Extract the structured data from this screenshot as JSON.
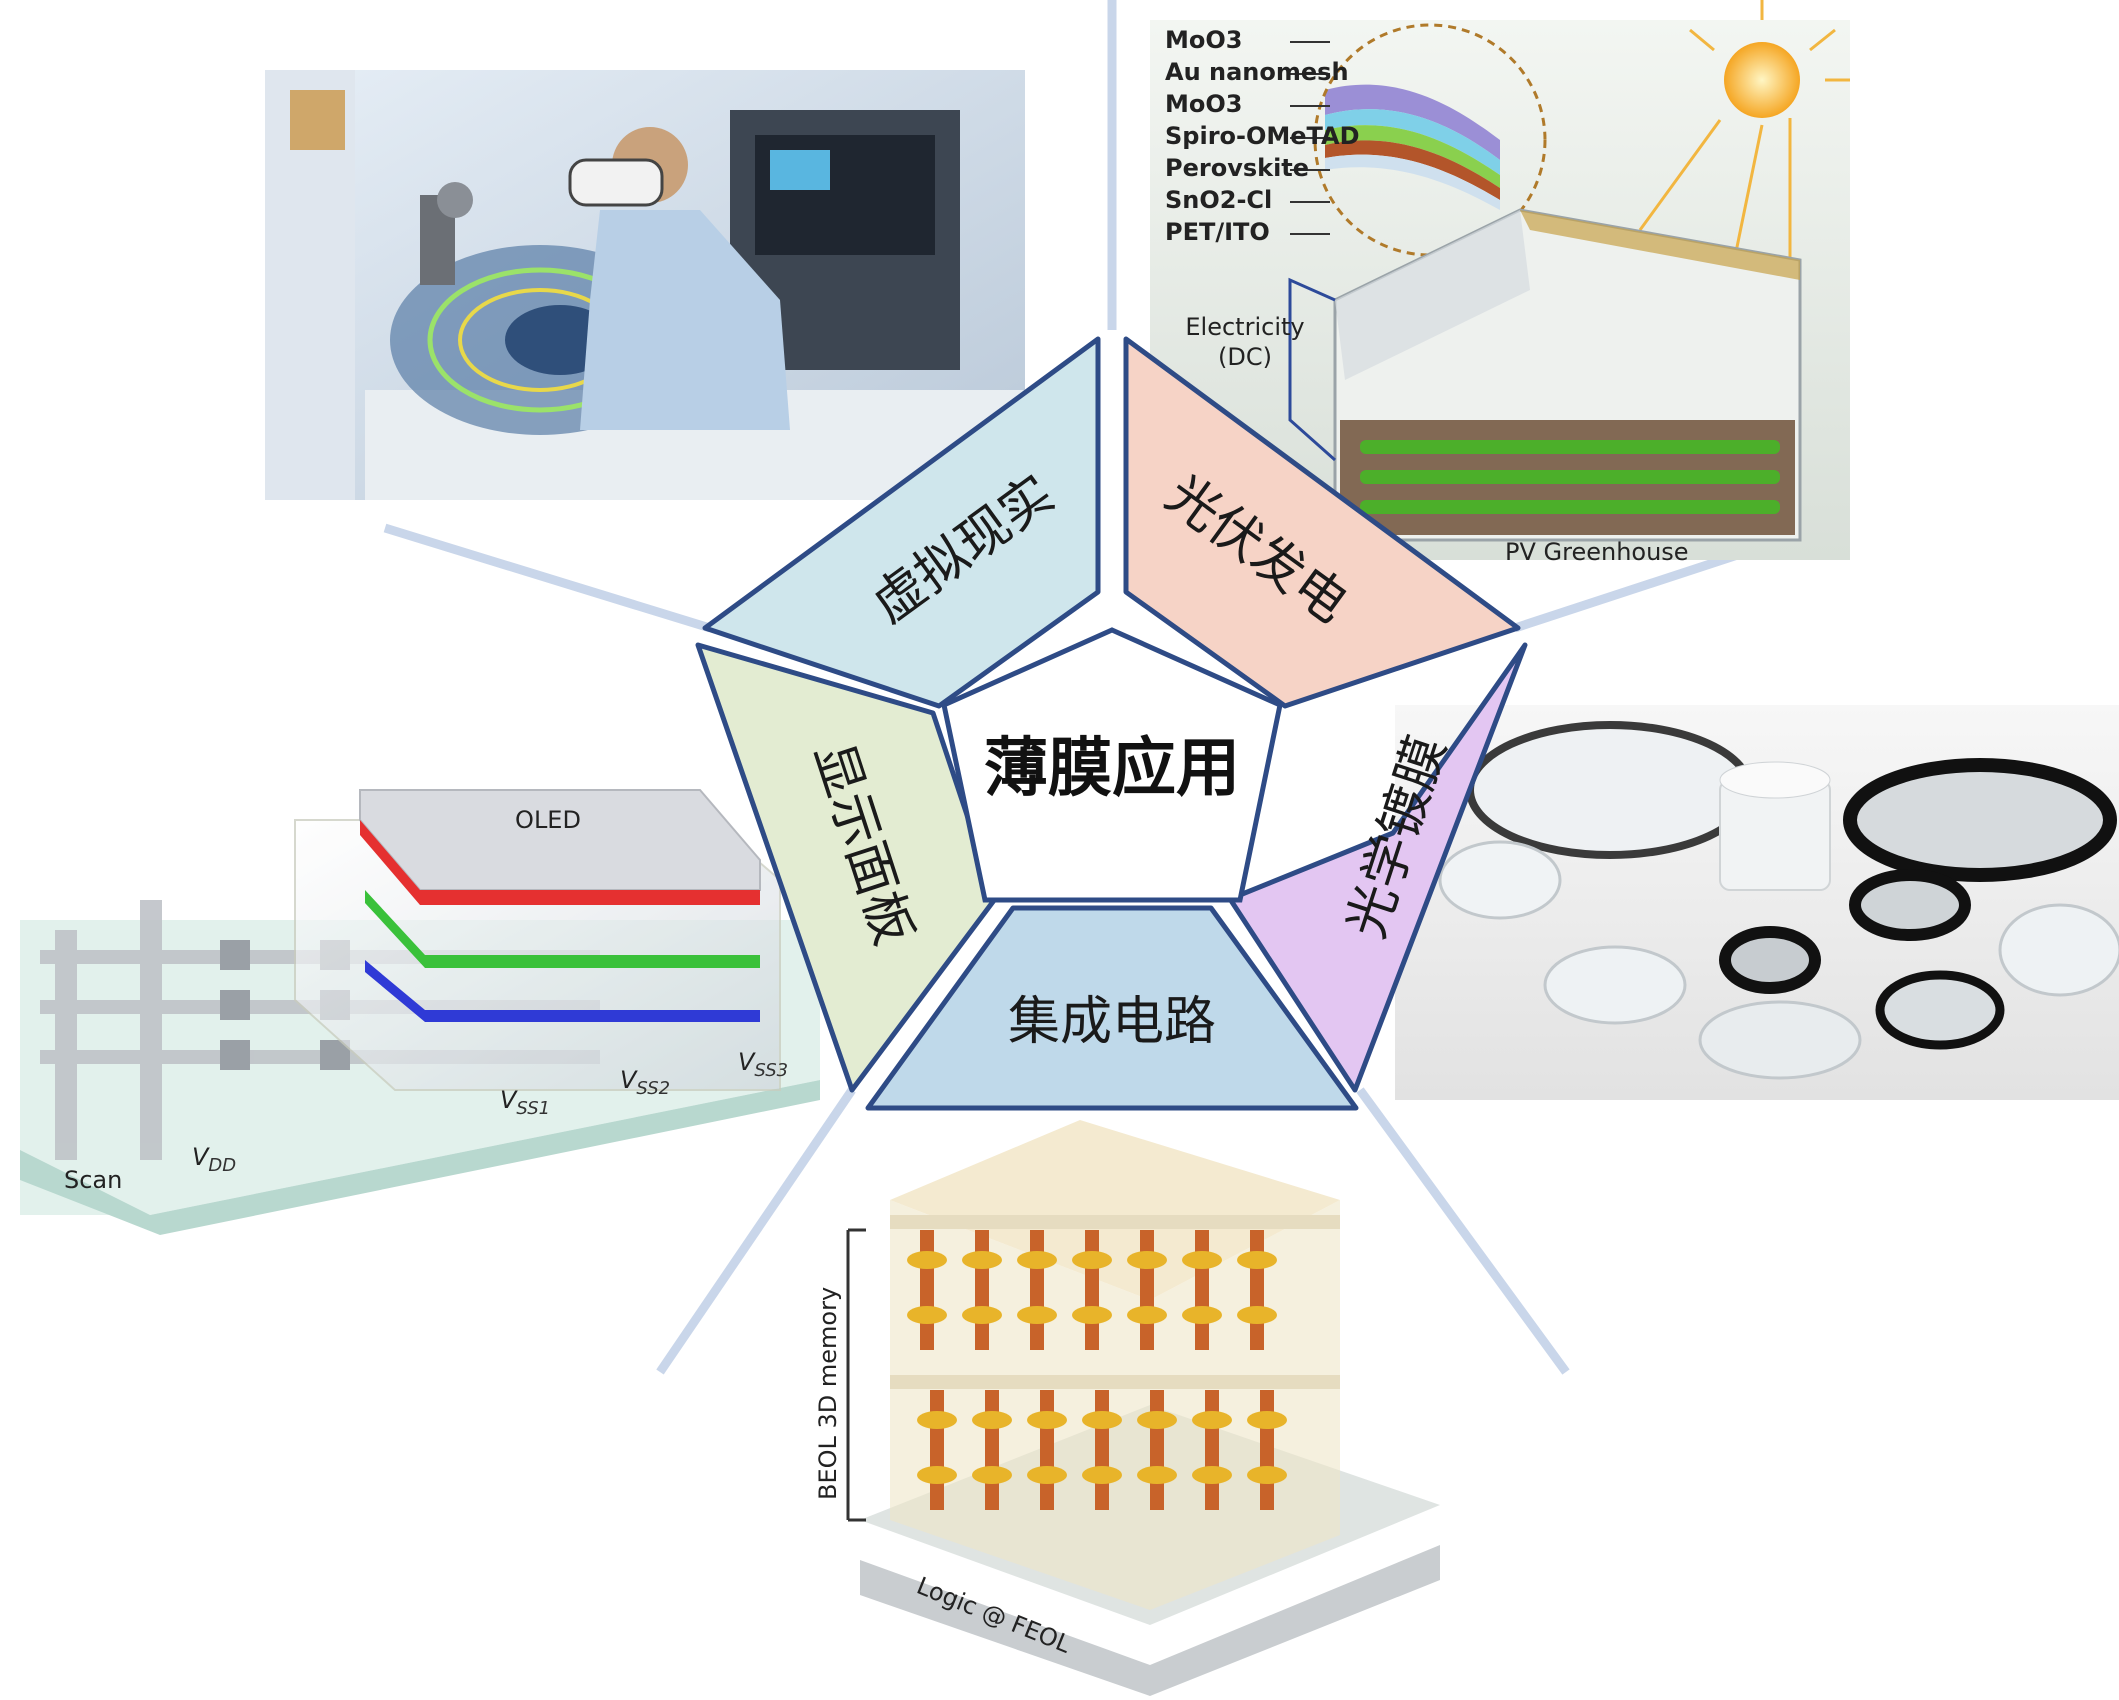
{
  "diagram": {
    "center": "薄膜应用",
    "segments": [
      {
        "id": "vr",
        "label": "虚拟现实",
        "color": "#cfe6ec"
      },
      {
        "id": "pv",
        "label": "光伏发电",
        "color": "#f6d3c6"
      },
      {
        "id": "optical",
        "label": "光学镀膜",
        "color": "#e3c6f2"
      },
      {
        "id": "ic",
        "label": "集成电路",
        "color": "#bfd9ea"
      },
      {
        "id": "display",
        "label": "显示面板",
        "color": "#e3ecd2"
      }
    ],
    "outline_color": "#2e4b86",
    "spoke_color": "#c9d6ea"
  },
  "panels": {
    "pv": {
      "layers": [
        "MoO3",
        "Au nanomesh",
        "MoO3",
        "Spiro-OMeTAD",
        "Perovskite",
        "SnO2-Cl",
        "PET/ITO"
      ],
      "electricity_line1": "Electricity",
      "electricity_line2": "(DC)",
      "greenhouse": "PV Greenhouse"
    },
    "display": {
      "oled": "OLED",
      "vss1": "V",
      "vss1_sub": "SS1",
      "vss2": "V",
      "vss2_sub": "SS2",
      "vss3": "V",
      "vss3_sub": "SS3",
      "vdd": "V",
      "vdd_sub": "DD",
      "scan": "Scan"
    },
    "ic": {
      "memory": "BEOL 3D memory",
      "logic": "Logic @ FEOL"
    }
  }
}
